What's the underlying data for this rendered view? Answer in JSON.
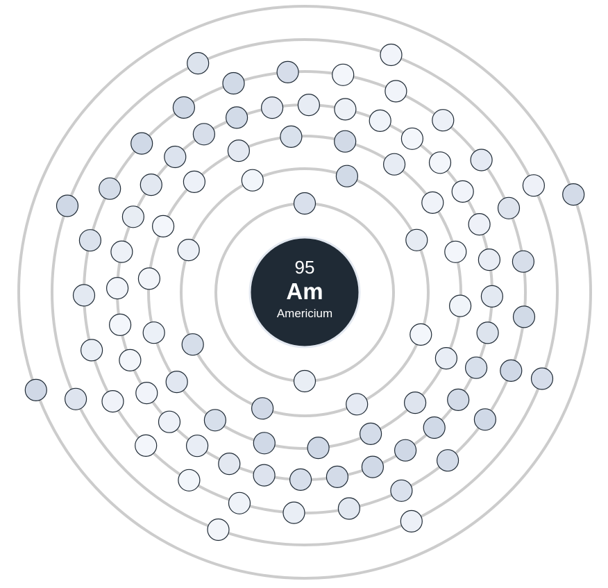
{
  "element": {
    "atomic_number": "95",
    "symbol": "Am",
    "name": "Americium"
  },
  "shells": [
    {
      "electrons": 2
    },
    {
      "electrons": 8
    },
    {
      "electrons": 18
    },
    {
      "electrons": 32
    },
    {
      "electrons": 25
    },
    {
      "electrons": 8
    },
    {
      "electrons": 2
    }
  ],
  "colors": {
    "nucleus": "#1f2a35",
    "nucleus_ring": "#e4e9f1",
    "shell_stroke": "#cccccc",
    "electron_stroke": "#1f2a35",
    "electron_fill_inner": "#cfd8e6",
    "electron_fill_outer": "#f3f6fb"
  }
}
